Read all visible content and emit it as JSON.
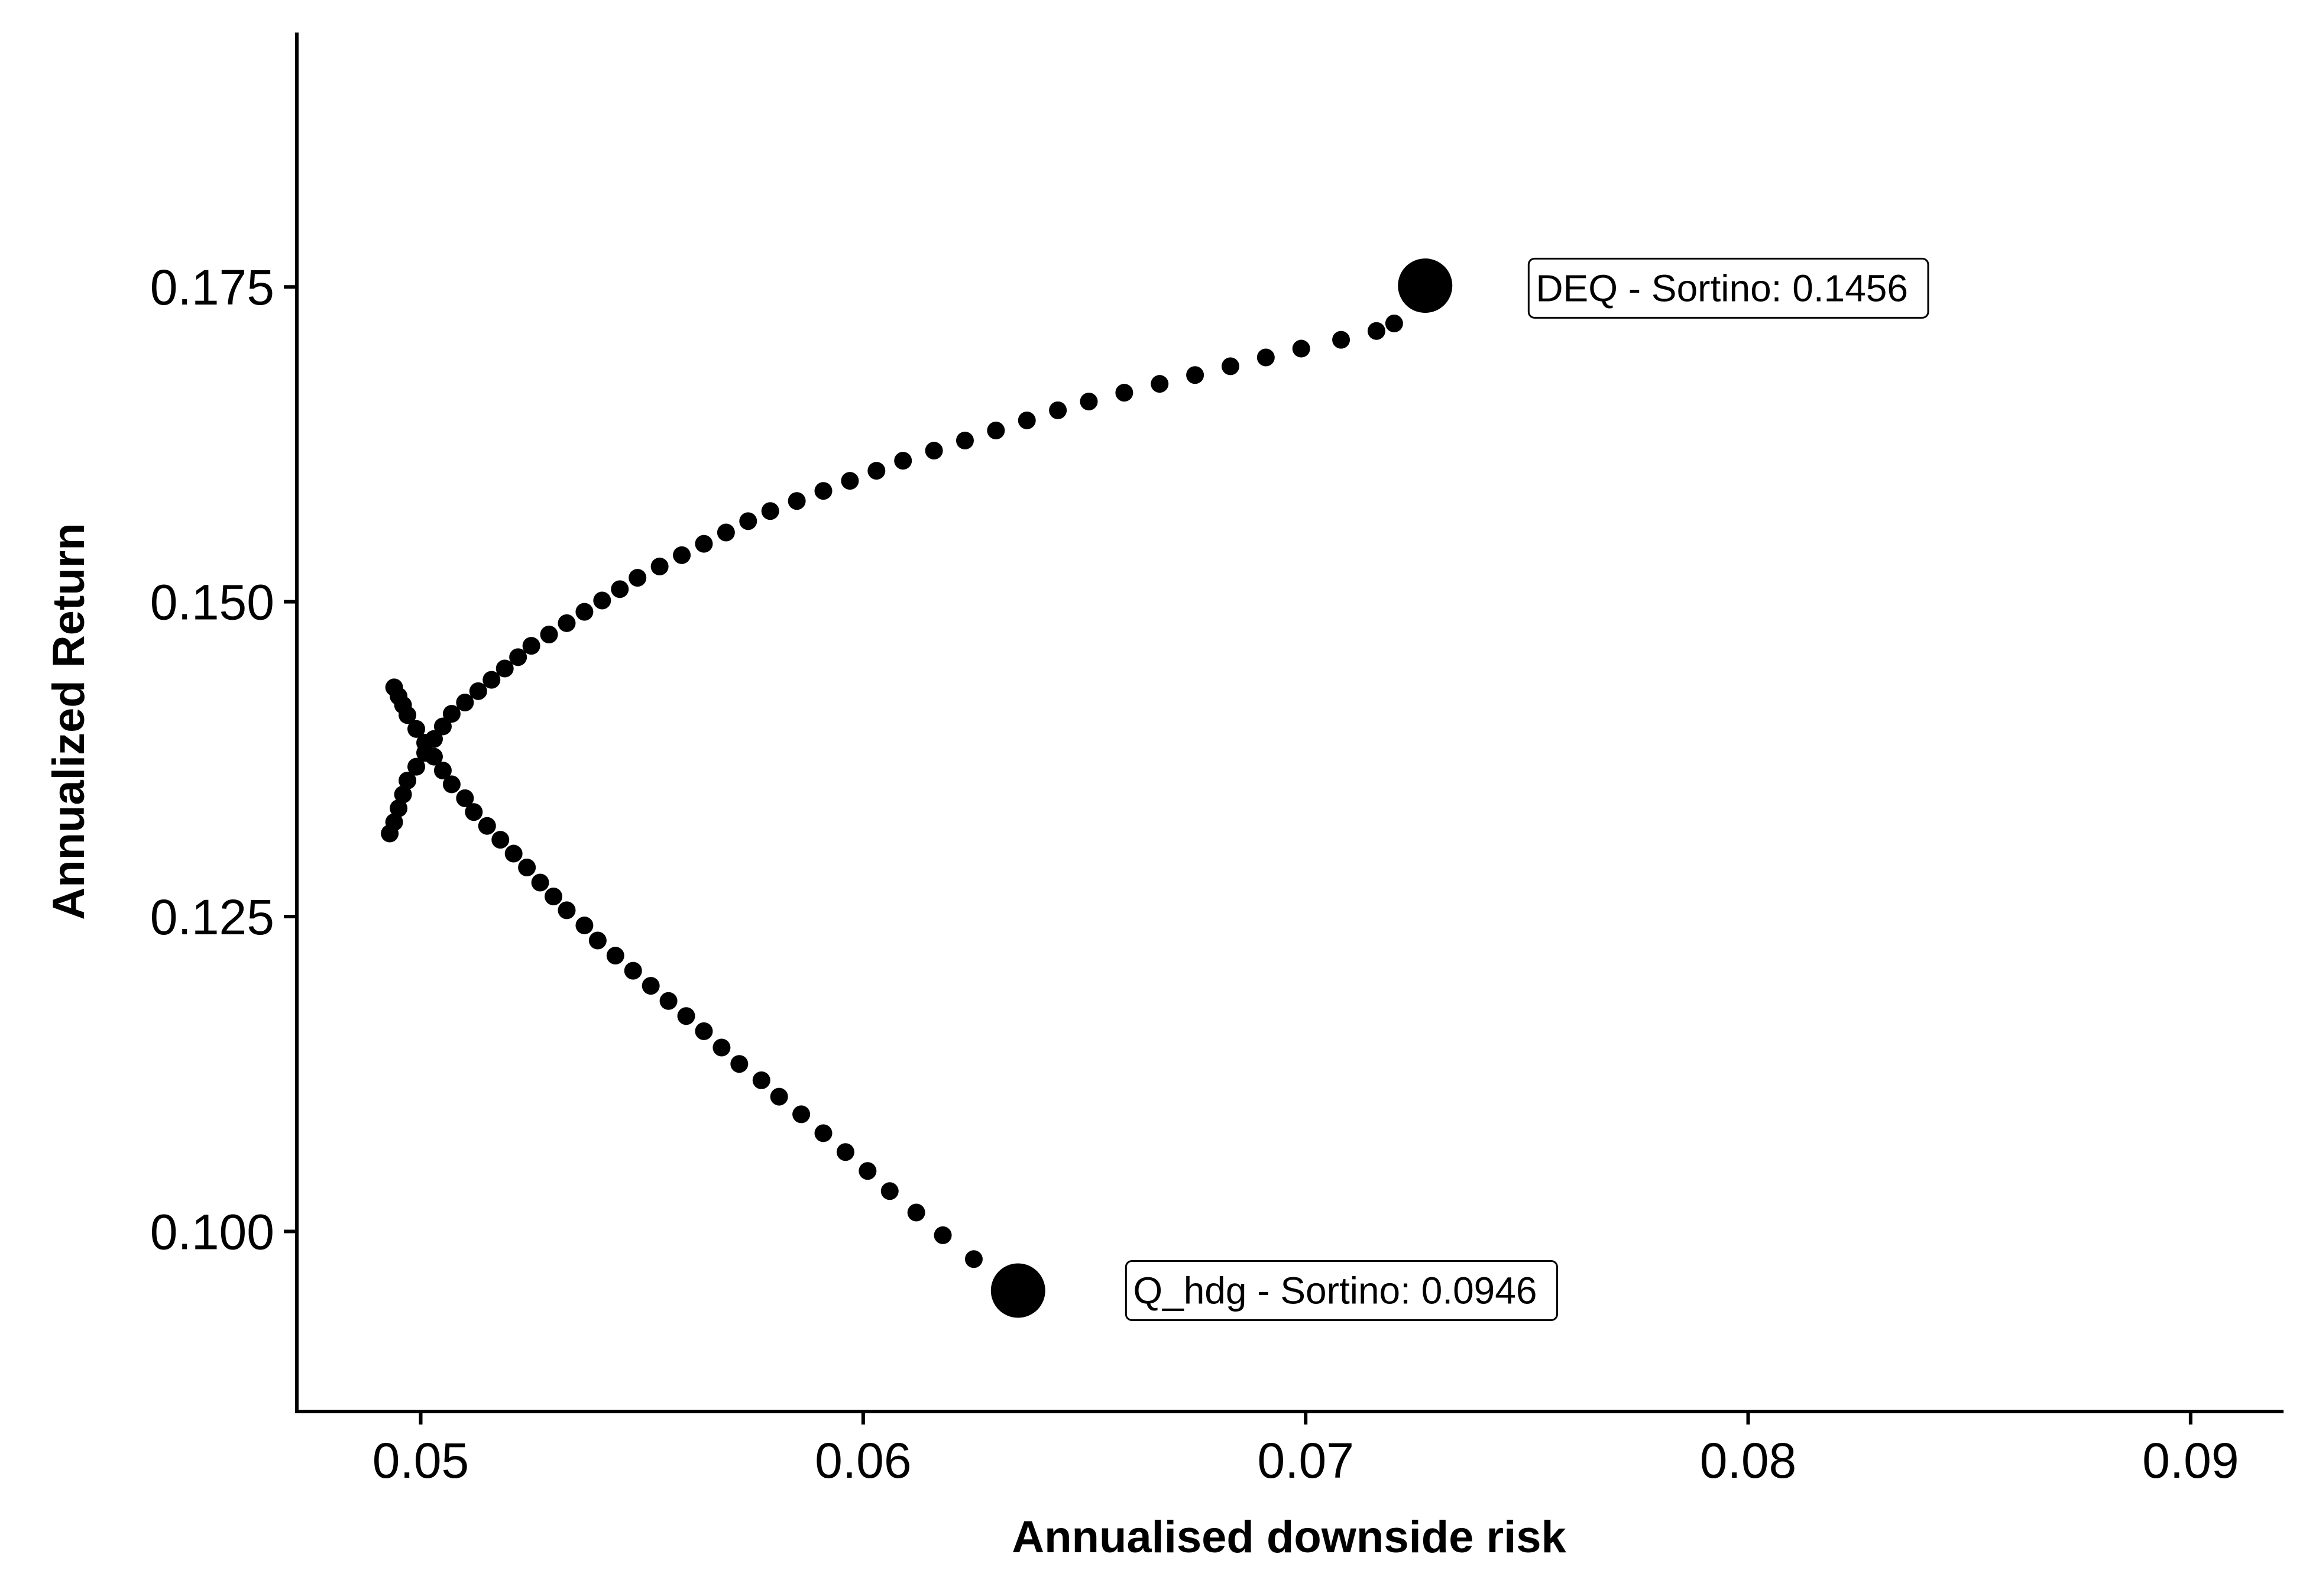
{
  "chart_data": {
    "type": "scatter",
    "title": "",
    "xlabel": "Annualised downside risk",
    "ylabel": "Annualized Return",
    "xlim": [
      0.0472,
      0.0921
    ],
    "ylim": [
      0.0857,
      0.1952
    ],
    "x_ticks": [
      {
        "value": 0.05,
        "label": "0.05"
      },
      {
        "value": 0.06,
        "label": "0.06"
      },
      {
        "value": 0.07,
        "label": "0.07"
      },
      {
        "value": 0.08,
        "label": "0.08"
      },
      {
        "value": 0.09,
        "label": "0.09"
      }
    ],
    "y_ticks": [
      {
        "value": 0.1,
        "label": "0.100"
      },
      {
        "value": 0.125,
        "label": "0.125"
      },
      {
        "value": 0.15,
        "label": "0.150"
      },
      {
        "value": 0.175,
        "label": "0.175"
      }
    ],
    "grid": false,
    "point_color": "#000000",
    "series": [
      {
        "name": "frontier",
        "x": [
          0.0634,
          0.0625,
          0.0618,
          0.0612,
          0.0606,
          0.0601,
          0.0596,
          0.0591,
          0.0586,
          0.0581,
          0.0577,
          0.0572,
          0.0568,
          0.0564,
          0.056,
          0.0556,
          0.0552,
          0.0548,
          0.0544,
          0.054,
          0.0537,
          0.0533,
          0.053,
          0.0527,
          0.0524,
          0.0521,
          0.0518,
          0.0515,
          0.0512,
          0.051,
          0.0507,
          0.0505,
          0.0503,
          0.0501,
          0.0499,
          0.0497,
          0.0496,
          0.0495,
          0.0494,
          0.0493,
          0.0494,
          0.0495,
          0.0496,
          0.0497,
          0.0499,
          0.0501,
          0.0503,
          0.0505,
          0.0507,
          0.051,
          0.0513,
          0.0516,
          0.0519,
          0.0522,
          0.0525,
          0.0529,
          0.0533,
          0.0537,
          0.0541,
          0.0545,
          0.0549,
          0.0554,
          0.0559,
          0.0564,
          0.0569,
          0.0574,
          0.0579,
          0.0585,
          0.0591,
          0.0597,
          0.0603,
          0.0609,
          0.0616,
          0.0623,
          0.063,
          0.0637,
          0.0644,
          0.0651,
          0.0659,
          0.0667,
          0.0675,
          0.0683,
          0.0691,
          0.0699,
          0.0708,
          0.0716,
          0.072
        ],
        "y": [
          0.0958,
          0.0978,
          0.0997,
          0.1015,
          0.1032,
          0.1048,
          0.1063,
          0.1078,
          0.1093,
          0.1107,
          0.112,
          0.1133,
          0.1146,
          0.1159,
          0.1171,
          0.1183,
          0.1195,
          0.1207,
          0.1219,
          0.1231,
          0.1243,
          0.1255,
          0.1266,
          0.1277,
          0.1289,
          0.13,
          0.1311,
          0.1322,
          0.1333,
          0.1344,
          0.1355,
          0.1366,
          0.1377,
          0.1388,
          0.1399,
          0.141,
          0.1418,
          0.1425,
          0.1432,
          0.1316,
          0.1325,
          0.1336,
          0.1347,
          0.1358,
          0.1369,
          0.138,
          0.1391,
          0.1401,
          0.1411,
          0.142,
          0.1429,
          0.1438,
          0.1447,
          0.1456,
          0.1465,
          0.1474,
          0.1483,
          0.1492,
          0.1501,
          0.151,
          0.1519,
          0.1528,
          0.1537,
          0.1546,
          0.1555,
          0.1564,
          0.1572,
          0.158,
          0.1588,
          0.1596,
          0.1604,
          0.1612,
          0.162,
          0.1628,
          0.1636,
          0.1644,
          0.1652,
          0.1659,
          0.1666,
          0.1673,
          0.168,
          0.1687,
          0.1694,
          0.1701,
          0.1708,
          0.1715,
          0.1721
        ]
      },
      {
        "name": "endpoints",
        "x": [
          0.0727,
          0.0635
        ],
        "y": [
          0.1751,
          0.0953
        ]
      }
    ],
    "annotations": [
      {
        "text": "DEQ - Sortino: 0.1456",
        "x": 0.0752,
        "y": 0.1749
      },
      {
        "text": "Q_hdg - Sortino: 0.0946",
        "x": 0.0661,
        "y": 0.0953
      }
    ]
  }
}
